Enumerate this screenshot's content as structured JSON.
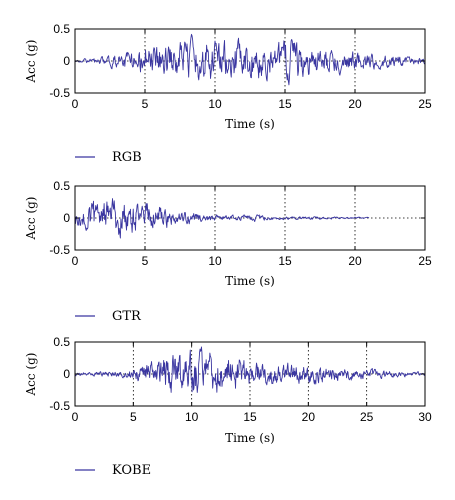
{
  "colors": {
    "series": "#3a36a0",
    "axis": "#000000",
    "grid": "#000000"
  },
  "chart_data": [
    {
      "type": "line",
      "xlabel": "Time (s)",
      "ylabel": "Acc (g)",
      "xlim": [
        0,
        25
      ],
      "ylim": [
        -0.5,
        0.5
      ],
      "xticks": [
        "0",
        "5",
        "10",
        "15",
        "20",
        "25"
      ],
      "yticks": [
        "0.5",
        "0",
        "-0.5"
      ],
      "grid": "dotted",
      "legend": "below",
      "series": [
        {
          "name": "RGB",
          "color": "#3a36a0",
          "duration": 25,
          "x": [
            0,
            1,
            2,
            3,
            4,
            5,
            6,
            7,
            8,
            9,
            10,
            11,
            12,
            13,
            14,
            15,
            16,
            17,
            18,
            19,
            20,
            21,
            22,
            23,
            24,
            25
          ],
          "envelope": [
            0.02,
            0.05,
            0.08,
            0.15,
            0.22,
            0.28,
            0.3,
            0.34,
            0.35,
            0.38,
            0.42,
            0.38,
            0.35,
            0.33,
            0.32,
            0.38,
            0.36,
            0.3,
            0.25,
            0.2,
            0.18,
            0.15,
            0.13,
            0.1,
            0.08,
            0.07
          ]
        }
      ]
    },
    {
      "type": "line",
      "xlabel": "Time (s)",
      "ylabel": "Acc (g)",
      "xlim": [
        0,
        25
      ],
      "ylim": [
        -0.5,
        0.5
      ],
      "xticks": [
        "0",
        "5",
        "10",
        "15",
        "20",
        "25"
      ],
      "yticks": [
        "0.5",
        "0",
        "-0.5"
      ],
      "grid": "dotted",
      "legend": "below",
      "series": [
        {
          "name": "GTR",
          "color": "#3a36a0",
          "duration": 21,
          "x": [
            0,
            1,
            2,
            3,
            4,
            5,
            6,
            7,
            8,
            9,
            10,
            11,
            12,
            13,
            14,
            15,
            16,
            17,
            18,
            19,
            20,
            21
          ],
          "envelope": [
            0.15,
            0.3,
            0.35,
            0.38,
            0.35,
            0.28,
            0.22,
            0.16,
            0.12,
            0.08,
            0.06,
            0.05,
            0.05,
            0.06,
            0.04,
            0.03,
            0.03,
            0.03,
            0.02,
            0.02,
            0.02,
            0.01
          ]
        }
      ]
    },
    {
      "type": "line",
      "xlabel": "Time (s)",
      "ylabel": "Acc (g)",
      "xlim": [
        0,
        30
      ],
      "ylim": [
        -0.5,
        0.5
      ],
      "xticks": [
        "0",
        "5",
        "10",
        "15",
        "20",
        "25",
        "30"
      ],
      "yticks": [
        "0.5",
        "0",
        "-0.5"
      ],
      "grid": "dotted",
      "legend": "below",
      "series": [
        {
          "name": "KOBE",
          "color": "#3a36a0",
          "duration": 30,
          "x": [
            0,
            2,
            4,
            6,
            8,
            10,
            12,
            14,
            16,
            18,
            20,
            22,
            24,
            26,
            28,
            30
          ],
          "envelope": [
            0.03,
            0.04,
            0.06,
            0.15,
            0.35,
            0.42,
            0.38,
            0.3,
            0.22,
            0.18,
            0.16,
            0.14,
            0.1,
            0.07,
            0.05,
            0.04
          ]
        }
      ]
    }
  ]
}
